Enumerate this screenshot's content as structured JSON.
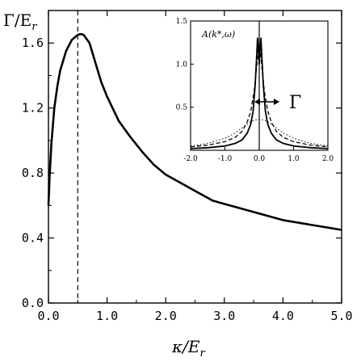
{
  "chart_data": [
    {
      "type": "line",
      "ylabel": "Γ/E",
      "ylabel_sub": "r",
      "xlabel": "κ/E",
      "xlabel_sub": "r",
      "xlim": [
        0.0,
        5.0
      ],
      "ylim": [
        0.0,
        1.8
      ],
      "x_ticks": [
        "0.0",
        "1.0",
        "2.0",
        "3.0",
        "4.0",
        "5.0"
      ],
      "x_tick_values": [
        0.0,
        1.0,
        2.0,
        3.0,
        4.0,
        5.0
      ],
      "y_ticks": [
        "0.0",
        "0.4",
        "0.8",
        "1.2",
        "1.6"
      ],
      "y_tick_values": [
        0.0,
        0.4,
        0.8,
        1.2,
        1.6
      ],
      "vertical_marker_x": 0.5,
      "series": [
        {
          "style": "solid",
          "x": [
            0.0,
            0.02,
            0.05,
            0.1,
            0.15,
            0.2,
            0.3,
            0.4,
            0.5,
            0.55,
            0.6,
            0.7,
            0.8,
            0.9,
            1.0,
            1.2,
            1.4,
            1.6,
            1.8,
            2.0,
            2.2,
            2.4,
            2.6,
            2.8,
            3.0,
            3.5,
            4.0,
            4.5,
            5.0
          ],
          "y": [
            0.6,
            0.78,
            0.98,
            1.2,
            1.33,
            1.43,
            1.55,
            1.62,
            1.65,
            1.655,
            1.65,
            1.6,
            1.48,
            1.36,
            1.27,
            1.12,
            1.02,
            0.93,
            0.85,
            0.79,
            0.75,
            0.71,
            0.67,
            0.63,
            0.61,
            0.56,
            0.51,
            0.48,
            0.45
          ]
        }
      ]
    },
    {
      "type": "line",
      "title": "A(k*,ω)",
      "xlim": [
        -2.0,
        2.0
      ],
      "ylim": [
        0.0,
        1.5
      ],
      "x_ticks": [
        "-2.0",
        "-1.0",
        "0.0",
        "1.0",
        "2.0"
      ],
      "x_tick_values": [
        -2.0,
        -1.0,
        0.0,
        1.0,
        2.0
      ],
      "y_ticks": [
        "0.5",
        "1.0",
        "1.5"
      ],
      "y_tick_values": [
        0.5,
        1.0,
        1.5
      ],
      "annotation": "Γ",
      "vertical_marker_x": 0.0,
      "series": [
        {
          "style": "solid",
          "x": [
            -2.0,
            -1.5,
            -1.0,
            -0.7,
            -0.5,
            -0.35,
            -0.25,
            -0.18,
            -0.12,
            -0.08,
            -0.05,
            -0.02,
            0.0,
            0.02,
            0.05,
            0.08,
            0.12,
            0.18,
            0.25,
            0.35,
            0.5,
            0.7,
            1.0,
            1.5,
            2.0
          ],
          "y": [
            0.02,
            0.03,
            0.05,
            0.08,
            0.12,
            0.2,
            0.3,
            0.45,
            0.75,
            1.05,
            1.3,
            1.15,
            1.0,
            1.15,
            1.3,
            1.05,
            0.75,
            0.45,
            0.3,
            0.2,
            0.12,
            0.08,
            0.05,
            0.03,
            0.02
          ]
        },
        {
          "style": "dashed",
          "x": [
            -2.0,
            -1.5,
            -1.0,
            -0.7,
            -0.5,
            -0.35,
            -0.25,
            -0.15,
            -0.08,
            -0.03,
            0.0,
            0.03,
            0.08,
            0.15,
            0.25,
            0.35,
            0.5,
            0.7,
            1.0,
            1.5,
            2.0
          ],
          "y": [
            0.04,
            0.06,
            0.1,
            0.15,
            0.22,
            0.33,
            0.45,
            0.68,
            0.95,
            1.15,
            1.2,
            1.15,
            0.95,
            0.68,
            0.45,
            0.33,
            0.22,
            0.15,
            0.1,
            0.06,
            0.04
          ]
        },
        {
          "style": "dotted",
          "x": [
            -2.0,
            -1.5,
            -1.0,
            -0.7,
            -0.5,
            -0.3,
            -0.15,
            0.0,
            0.15,
            0.3,
            0.5,
            0.7,
            1.0,
            1.5,
            2.0
          ],
          "y": [
            0.05,
            0.08,
            0.14,
            0.2,
            0.26,
            0.32,
            0.35,
            0.36,
            0.35,
            0.32,
            0.26,
            0.2,
            0.14,
            0.08,
            0.05
          ]
        }
      ]
    }
  ]
}
